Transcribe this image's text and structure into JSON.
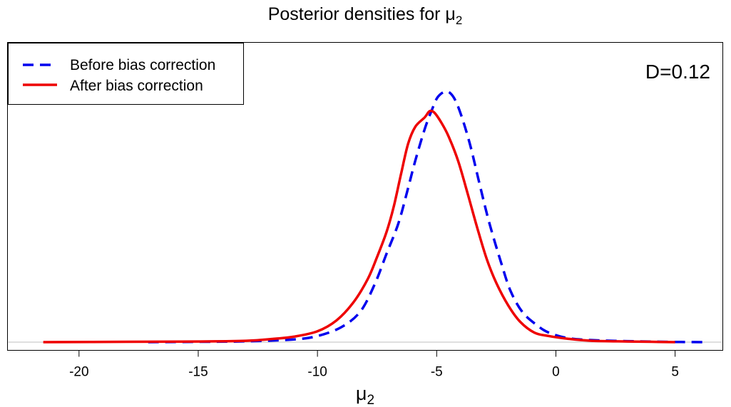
{
  "chart_data": {
    "type": "line",
    "title": {
      "prefix": "Posterior densities for ",
      "symbol": "μ",
      "subscript": "2"
    },
    "xlabel": {
      "symbol": "μ",
      "subscript": "2"
    },
    "ylabel": "",
    "xlim": [
      -23,
      7
    ],
    "ylim": [
      -0.012,
      0.44
    ],
    "x_ticks": [
      -20,
      -15,
      -10,
      -5,
      0,
      5
    ],
    "x_tick_labels": [
      "-20",
      "-15",
      "-10",
      "-5",
      "0",
      "5"
    ],
    "baseline": 0,
    "baseline_color": "#bfbfbf",
    "grid": false,
    "legend_position": "top-left",
    "annotation": {
      "text": "D=0.12",
      "position": "top-right"
    },
    "series": [
      {
        "name": "Before bias correction",
        "color": "#0000ee",
        "dash": "dashed",
        "points": [
          [
            -17.1,
            0.0
          ],
          [
            -15.0,
            0.0005
          ],
          [
            -13.0,
            0.0012
          ],
          [
            -11.0,
            0.004
          ],
          [
            -10.0,
            0.009
          ],
          [
            -9.0,
            0.022
          ],
          [
            -8.2,
            0.045
          ],
          [
            -7.6,
            0.085
          ],
          [
            -7.1,
            0.13
          ],
          [
            -6.6,
            0.175
          ],
          [
            -6.2,
            0.226
          ],
          [
            -5.9,
            0.266
          ],
          [
            -5.5,
            0.313
          ],
          [
            -5.2,
            0.341
          ],
          [
            -4.95,
            0.36
          ],
          [
            -4.6,
            0.368
          ],
          [
            -4.3,
            0.36
          ],
          [
            -4.0,
            0.336
          ],
          [
            -3.6,
            0.29
          ],
          [
            -3.2,
            0.232
          ],
          [
            -2.8,
            0.176
          ],
          [
            -2.3,
            0.117
          ],
          [
            -1.9,
            0.075
          ],
          [
            -1.4,
            0.044
          ],
          [
            -0.8,
            0.025
          ],
          [
            -0.3,
            0.014
          ],
          [
            0.5,
            0.006
          ],
          [
            1.5,
            0.003
          ],
          [
            3.0,
            0.0015
          ],
          [
            4.5,
            0.0005
          ],
          [
            6.3,
            0.0
          ]
        ]
      },
      {
        "name": "After bias correction",
        "color": "#ee0000",
        "dash": "solid",
        "points": [
          [
            -21.5,
            0.0
          ],
          [
            -18.0,
            0.0005
          ],
          [
            -15.0,
            0.001
          ],
          [
            -13.0,
            0.002
          ],
          [
            -11.8,
            0.005
          ],
          [
            -11.0,
            0.008
          ],
          [
            -10.0,
            0.016
          ],
          [
            -9.2,
            0.032
          ],
          [
            -8.5,
            0.058
          ],
          [
            -7.9,
            0.092
          ],
          [
            -7.5,
            0.125
          ],
          [
            -7.1,
            0.162
          ],
          [
            -6.8,
            0.199
          ],
          [
            -6.5,
            0.246
          ],
          [
            -6.2,
            0.291
          ],
          [
            -5.9,
            0.316
          ],
          [
            -5.5,
            0.33
          ],
          [
            -5.3,
            0.339
          ],
          [
            -5.1,
            0.337
          ],
          [
            -4.8,
            0.322
          ],
          [
            -4.5,
            0.302
          ],
          [
            -4.1,
            0.266
          ],
          [
            -3.7,
            0.218
          ],
          [
            -3.3,
            0.168
          ],
          [
            -2.9,
            0.122
          ],
          [
            -2.5,
            0.087
          ],
          [
            -2.0,
            0.054
          ],
          [
            -1.5,
            0.03
          ],
          [
            -0.9,
            0.014
          ],
          [
            -0.3,
            0.009
          ],
          [
            0.5,
            0.005
          ],
          [
            1.5,
            0.002
          ],
          [
            3.0,
            0.001
          ],
          [
            4.0,
            0.0005
          ],
          [
            5.0,
            0.0
          ]
        ]
      }
    ]
  }
}
